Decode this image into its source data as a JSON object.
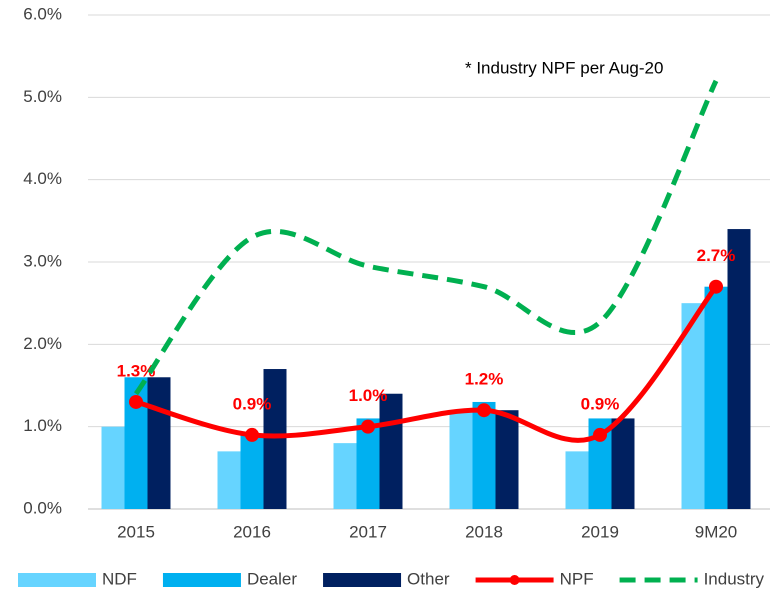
{
  "chart_data": {
    "type": "bar-line",
    "annotation": "* Industry NPF per Aug-20",
    "categories": [
      "2015",
      "2016",
      "2017",
      "2018",
      "2019",
      "9M20"
    ],
    "series": [
      {
        "name": "NDF",
        "type": "bar",
        "color": "#66d4ff",
        "values": [
          1.0,
          0.7,
          0.8,
          1.2,
          0.7,
          2.5
        ]
      },
      {
        "name": "Dealer",
        "type": "bar",
        "color": "#00b0f0",
        "values": [
          1.6,
          0.9,
          1.1,
          1.3,
          1.1,
          2.7
        ]
      },
      {
        "name": "Other",
        "type": "bar",
        "color": "#002060",
        "values": [
          1.6,
          1.7,
          1.4,
          1.2,
          1.1,
          3.4
        ]
      },
      {
        "name": "NPF",
        "type": "line",
        "color": "#ff0000",
        "values": [
          1.3,
          0.9,
          1.0,
          1.2,
          0.9,
          2.7
        ],
        "value_labels": [
          "1.3%",
          "0.9%",
          "1.0%",
          "1.2%",
          "0.9%",
          "2.7%"
        ]
      },
      {
        "name": "Industry",
        "type": "dashed-line",
        "color": "#00b050",
        "values": [
          1.4,
          3.3,
          2.95,
          2.7,
          2.27,
          5.2
        ]
      }
    ],
    "ylim": [
      0,
      6
    ],
    "yticks": [
      {
        "value": 0,
        "label": "0.0%"
      },
      {
        "value": 1,
        "label": "1.0%"
      },
      {
        "value": 2,
        "label": "2.0%"
      },
      {
        "value": 3,
        "label": "3.0%"
      },
      {
        "value": 4,
        "label": "4.0%"
      },
      {
        "value": 5,
        "label": "5.0%"
      },
      {
        "value": 6,
        "label": "6.0%"
      }
    ],
    "grid": true,
    "legend": "bottom"
  }
}
